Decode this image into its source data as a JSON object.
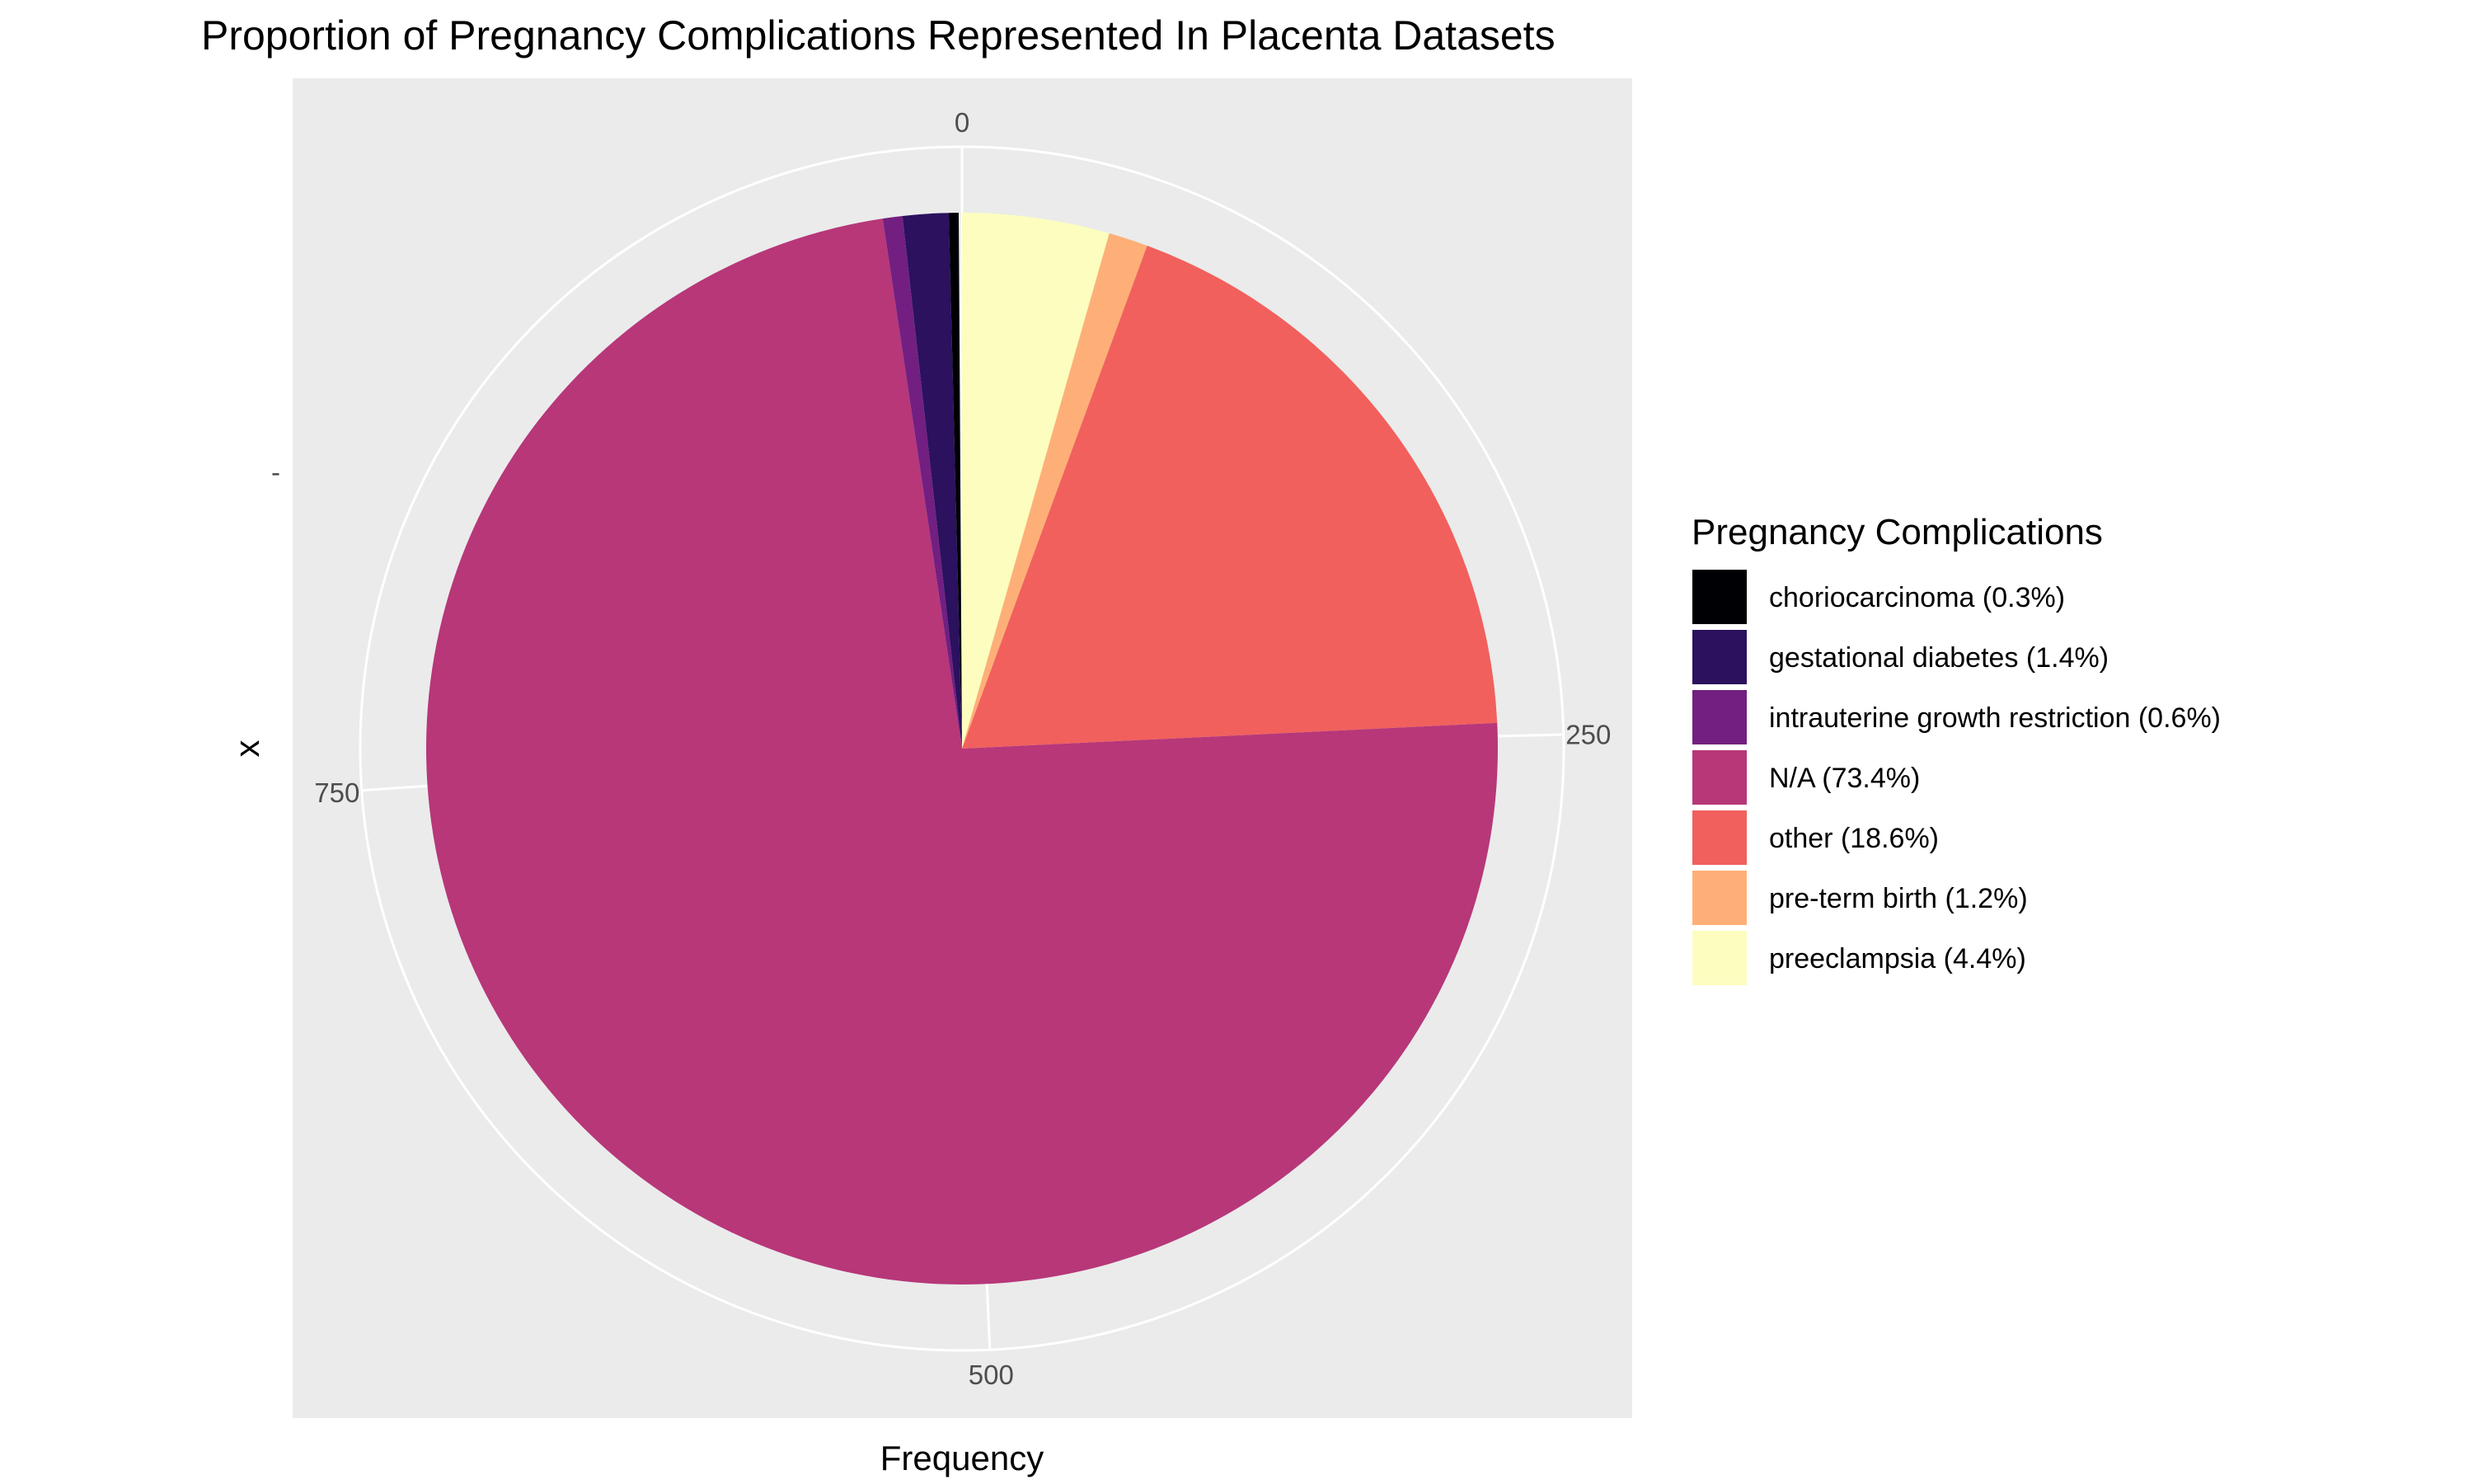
{
  "chart_data": {
    "type": "pie",
    "title": "Proportion of Pregnancy Complications Represented In Placenta Datasets",
    "xlabel": "Frequency",
    "ylabel": "x",
    "y_tick": "-",
    "theta_ticks": [
      0,
      250,
      500,
      750
    ],
    "theta_max": 1015,
    "grid": true,
    "legend_title": "Pregnancy Complications",
    "legend_position": "right",
    "slices": [
      {
        "label": "choriocarcinoma (0.3%)",
        "value": 3,
        "color": "#000004"
      },
      {
        "label": "gestational diabetes (1.4%)",
        "value": 14,
        "color": "#2B115E"
      },
      {
        "label": "intrauterine growth restriction (0.6%)",
        "value": 6,
        "color": "#721F81"
      },
      {
        "label": "N/A (73.4%)",
        "value": 745,
        "color": "#B73779"
      },
      {
        "label": "other (18.6%)",
        "value": 189,
        "color": "#F1605D"
      },
      {
        "label": "pre-term birth (1.2%)",
        "value": 12,
        "color": "#FEAF77"
      },
      {
        "label": "preeclampsia (4.4%)",
        "value": 45,
        "color": "#FCFDBF"
      }
    ]
  }
}
